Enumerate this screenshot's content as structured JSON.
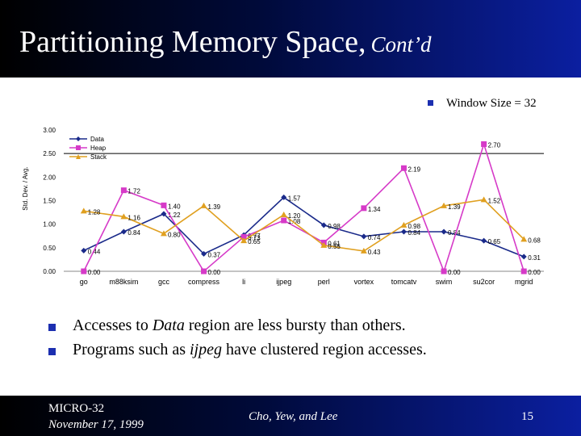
{
  "slide": {
    "title": "Partitioning Memory Space,",
    "title_sub": "Cont’d",
    "window_size": "Window Size = 32",
    "bullets": [
      {
        "pre": "Accesses to ",
        "em": "Data",
        "post": " region are less bursty than others."
      },
      {
        "pre": "Programs such as ",
        "em": "ijpeg",
        "post": " have clustered region accesses."
      }
    ],
    "footer": {
      "conference": "MICRO-32",
      "date": "November 17, 1999",
      "authors": "Cho, Yew, and Lee",
      "page": "15"
    }
  },
  "colors": {
    "title_bar": "#000a3a",
    "bullet": "#1c2fb0",
    "data": "#1a2a8a",
    "heap": "#d63ac8",
    "stack": "#e0a020"
  },
  "chart_data": {
    "type": "line",
    "ylabel": "Std. Dev. / Avg.",
    "ylim": [
      0,
      3
    ],
    "yticks": [
      "0.00",
      "0.50",
      "1.00",
      "1.50",
      "2.00",
      "2.50",
      "3.00"
    ],
    "categories": [
      "go",
      "m88ksim",
      "gcc",
      "compress",
      "li",
      "ijpeg",
      "perl",
      "vortex",
      "tomcatv",
      "swim",
      "su2cor",
      "mgrid"
    ],
    "legend_position": "top-left",
    "series": [
      {
        "name": "Data",
        "key": "data",
        "marker": "diamond",
        "values": [
          0.44,
          0.84,
          1.22,
          0.37,
          0.77,
          1.57,
          0.98,
          0.74,
          0.84,
          0.84,
          0.65,
          0.31
        ],
        "labels": [
          "0.44",
          "0.84",
          "1.22",
          "0.37",
          "0.77",
          "1.57",
          "0.98",
          "0.74",
          "0.84",
          "0.84",
          "0.65",
          "0.31"
        ]
      },
      {
        "name": "Heap",
        "key": "heap",
        "marker": "square",
        "values": [
          0.0,
          1.72,
          1.4,
          0.0,
          0.73,
          1.08,
          0.61,
          1.34,
          2.19,
          0.0,
          2.7,
          0.0
        ],
        "labels": [
          "0.00",
          "1.72",
          "1.40",
          "0.00",
          "0.73",
          "1.08",
          "0.61",
          "1.34",
          "2.19",
          "0.00",
          "2.70",
          "0.00"
        ]
      },
      {
        "name": "Stack",
        "key": "stack",
        "marker": "triangle",
        "values": [
          1.28,
          1.16,
          0.8,
          1.39,
          0.65,
          1.2,
          0.55,
          0.43,
          0.98,
          1.39,
          1.52,
          0.68
        ],
        "labels": [
          "1.28",
          "1.16",
          "0.80",
          "1.39",
          "0.65",
          "1.20",
          "0.55",
          "0.43",
          "0.98",
          "1.39",
          "1.52",
          "0.68"
        ]
      }
    ]
  }
}
